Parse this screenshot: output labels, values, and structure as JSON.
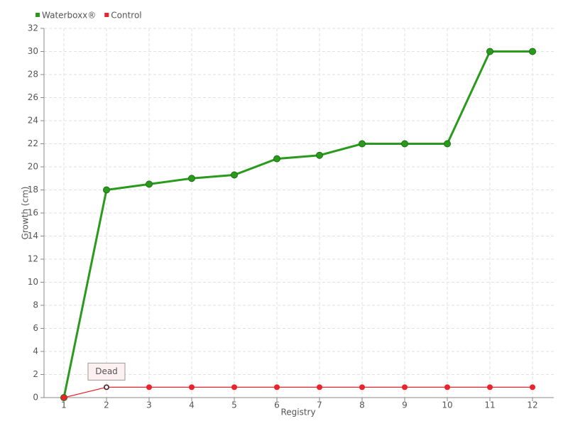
{
  "chart_data": {
    "type": "line",
    "x_label": "Registry",
    "y_label": "Growth (cm)",
    "categories": [
      "1",
      "2",
      "3",
      "4",
      "5",
      "6",
      "7",
      "8",
      "9",
      "10",
      "11",
      "12"
    ],
    "series": [
      {
        "name": "Waterboxx®",
        "color": "#2a9a1c",
        "values": [
          0,
          18,
          18.5,
          19,
          19.3,
          20.7,
          21,
          22,
          22,
          22,
          30,
          30
        ]
      },
      {
        "name": "Control",
        "color": "#e8242c",
        "values": [
          0,
          0.9,
          0.9,
          0.9,
          0.9,
          0.9,
          0.9,
          0.9,
          0.9,
          0.9,
          0.9,
          0.9
        ]
      }
    ],
    "ylim": [
      0,
      32
    ],
    "yticks": [
      0,
      2,
      4,
      6,
      8,
      10,
      12,
      14,
      16,
      18,
      20,
      22,
      24,
      26,
      28,
      30,
      32
    ],
    "grid": true,
    "legend": "top-left",
    "annotations": [
      {
        "text": "Dead",
        "series": "Control",
        "category": "2"
      }
    ]
  }
}
